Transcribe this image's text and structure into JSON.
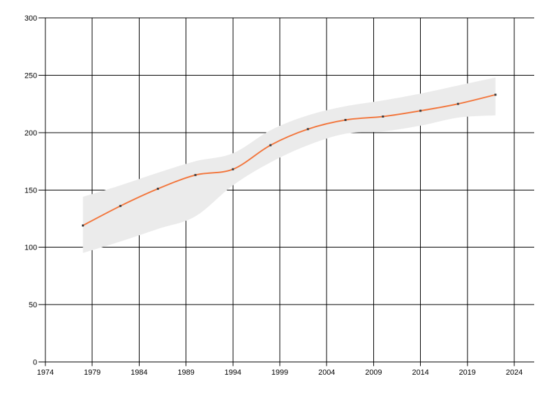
{
  "chart_data": {
    "type": "line",
    "title": "",
    "xlabel": "",
    "ylabel": "",
    "legend": false,
    "grid": true,
    "xlim": [
      1974,
      2026
    ],
    "ylim": [
      0,
      300
    ],
    "x_ticks": [
      1974,
      1979,
      1984,
      1989,
      1994,
      1999,
      2004,
      2009,
      2014,
      2019,
      2024
    ],
    "x_tick_labels": [
      "1974",
      "1979",
      "1984",
      "1989",
      "1994",
      "1999",
      "2004",
      "2009",
      "2014",
      "2019",
      "2024"
    ],
    "y_ticks": [
      0,
      50,
      100,
      150,
      200,
      250,
      300
    ],
    "y_tick_labels": [
      "0",
      "50",
      "100",
      "150",
      "200",
      "250",
      "300"
    ],
    "x": [
      1978,
      1982,
      1986,
      1990,
      1994,
      1998,
      2002,
      2006,
      2010,
      2014,
      2018,
      2022
    ],
    "series": [
      {
        "name": "value",
        "values": [
          119,
          136,
          151,
          163,
          168,
          189,
          203,
          211,
          214,
          219,
          225,
          233
        ]
      }
    ],
    "band": {
      "name": "confidence-band",
      "lower": [
        95,
        105,
        116,
        127,
        154,
        174,
        189,
        199,
        201,
        206,
        213,
        215
      ],
      "upper": [
        144,
        154,
        165,
        175,
        182,
        202,
        215,
        223,
        228,
        234,
        241,
        248
      ]
    },
    "colors": {
      "line": "#f2773e",
      "marker": "#3a3a3a",
      "band": "#ebebeb",
      "grid": "#000000",
      "text": "#000000",
      "background": "#ffffff"
    }
  }
}
